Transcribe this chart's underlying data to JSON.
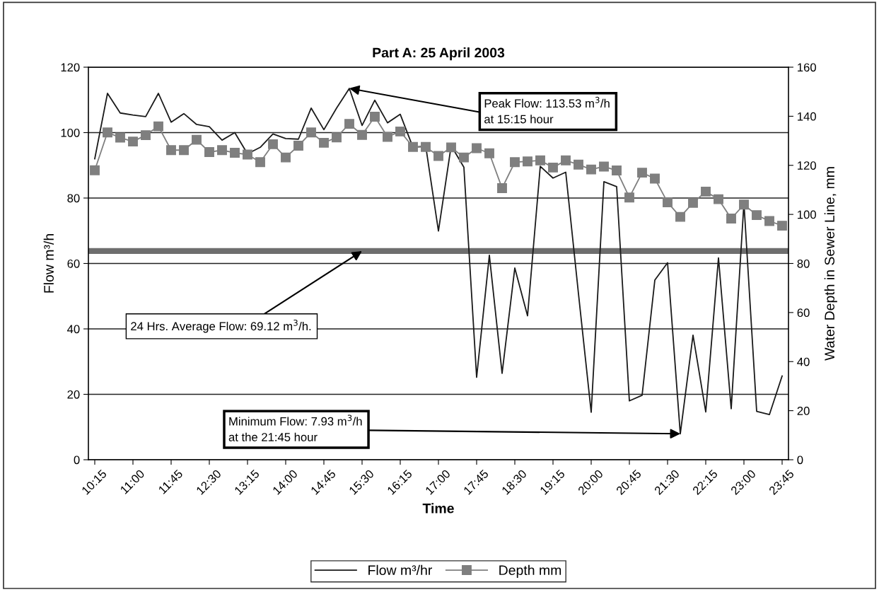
{
  "chart_data": {
    "type": "line",
    "title": "Part A: 25 April 2003",
    "xlabel": "Time",
    "ylabel": "Flow m³/h",
    "y2label": "Water Depth in Sewer Line, mm",
    "x": [
      10.25,
      10.5,
      10.75,
      11.0,
      11.25,
      11.5,
      11.75,
      12.0,
      12.25,
      12.5,
      12.75,
      13.0,
      13.25,
      13.5,
      13.75,
      14.0,
      14.25,
      14.5,
      14.75,
      15.0,
      15.25,
      15.5,
      15.75,
      16.0,
      16.25,
      16.5,
      16.75,
      17.0,
      17.25,
      17.5,
      17.75,
      18.0,
      18.25,
      18.5,
      18.75,
      19.0,
      19.25,
      19.5,
      19.75,
      20.0,
      20.25,
      20.5,
      20.75,
      21.0,
      21.25,
      21.5,
      21.75,
      22.0,
      22.25,
      22.5,
      22.75,
      23.0,
      23.25,
      23.5,
      23.75
    ],
    "series": [
      {
        "name": "Flow m³/hr",
        "color": "#1a1a1a",
        "marker": "none",
        "values": [
          92,
          112,
          106,
          105.4,
          104.9,
          112,
          103.2,
          105.8,
          102.5,
          101.8,
          97.7,
          100,
          93.5,
          95.5,
          99.6,
          98.2,
          98,
          107.5,
          100.9,
          107.5,
          113.53,
          102.2,
          109.9,
          103,
          105.6,
          95.5,
          95.9,
          69.9,
          96,
          89.4,
          25.2,
          62.5,
          26.4,
          58.6,
          44,
          89.7,
          86.1,
          87.9,
          50.8,
          14.5,
          85,
          83.5,
          18,
          19.7,
          54.9,
          60.2,
          7.93,
          38.1,
          14.6,
          61.7,
          15.6,
          78.5,
          14.8,
          13.8,
          25.6
        ]
      },
      {
        "name": "Depth mm",
        "color": "#7f7f7f",
        "marker": "square",
        "axis": "y2",
        "values": [
          118,
          133.4,
          131.3,
          129.7,
          132.3,
          135.9,
          126.2,
          126.2,
          130.4,
          125.4,
          126.2,
          125.1,
          124.4,
          121.3,
          128.6,
          123.2,
          128,
          133.4,
          129.2,
          131.4,
          136.9,
          132.4,
          139.8,
          131.6,
          133.8,
          127.5,
          127.5,
          123.8,
          127.3,
          123.2,
          127,
          124.9,
          110.7,
          121.3,
          121.6,
          122,
          119.1,
          122,
          120.3,
          118.3,
          119.5,
          117.9,
          106.9,
          117,
          114.6,
          104.9,
          99,
          104.7,
          109.3,
          106.2,
          98.3,
          104,
          99.7,
          97.3,
          95.4
        ]
      }
    ],
    "xlim": [
      10.125,
      23.875
    ],
    "xticks": [
      {
        "value": 10.25,
        "label": "10:15"
      },
      {
        "value": 11.0,
        "label": "11:00"
      },
      {
        "value": 11.75,
        "label": "11:45"
      },
      {
        "value": 12.5,
        "label": "12:30"
      },
      {
        "value": 13.25,
        "label": "13:15"
      },
      {
        "value": 14.0,
        "label": "14:00"
      },
      {
        "value": 14.75,
        "label": "14:45"
      },
      {
        "value": 15.5,
        "label": "15:30"
      },
      {
        "value": 16.25,
        "label": "16:15"
      },
      {
        "value": 17.0,
        "label": "17:00"
      },
      {
        "value": 17.75,
        "label": "17:45"
      },
      {
        "value": 18.5,
        "label": "18:30"
      },
      {
        "value": 19.25,
        "label": "19:15"
      },
      {
        "value": 20.0,
        "label": "20:00"
      },
      {
        "value": 20.75,
        "label": "20:45"
      },
      {
        "value": 21.5,
        "label": "21:30"
      },
      {
        "value": 22.25,
        "label": "22:15"
      },
      {
        "value": 23.0,
        "label": "23:00"
      },
      {
        "value": 23.75,
        "label": "23:45"
      }
    ],
    "ylim": [
      0,
      120
    ],
    "yticks": [
      0,
      20,
      40,
      60,
      80,
      100,
      120
    ],
    "y2lim": [
      0,
      160
    ],
    "y2ticks": [
      0,
      20,
      40,
      60,
      80,
      100,
      120,
      140,
      160
    ],
    "ref_lines": [
      {
        "axis": "y",
        "value": 63.8,
        "color": "#6e6e6e"
      }
    ],
    "annotations": [
      {
        "text": "Peak Flow: 113.53 m$^{3}$/h",
        "x": 15.25,
        "y": 113.53
      },
      "at 15:15 hour",
      {
        "text": "24 Hrs. Average Flow: 69.12 m$^{3}$/h.",
        "x": 15.5,
        "y": 63.8
      },
      {
        "text": "Minimum Flow: 7.93 m$^{3}$/h",
        "x": 21.75,
        "y": 7.93
      },
      "at the 21:45 hour"
    ],
    "grid": "y",
    "legend": "bottom",
    "line_style": "solid"
  }
}
